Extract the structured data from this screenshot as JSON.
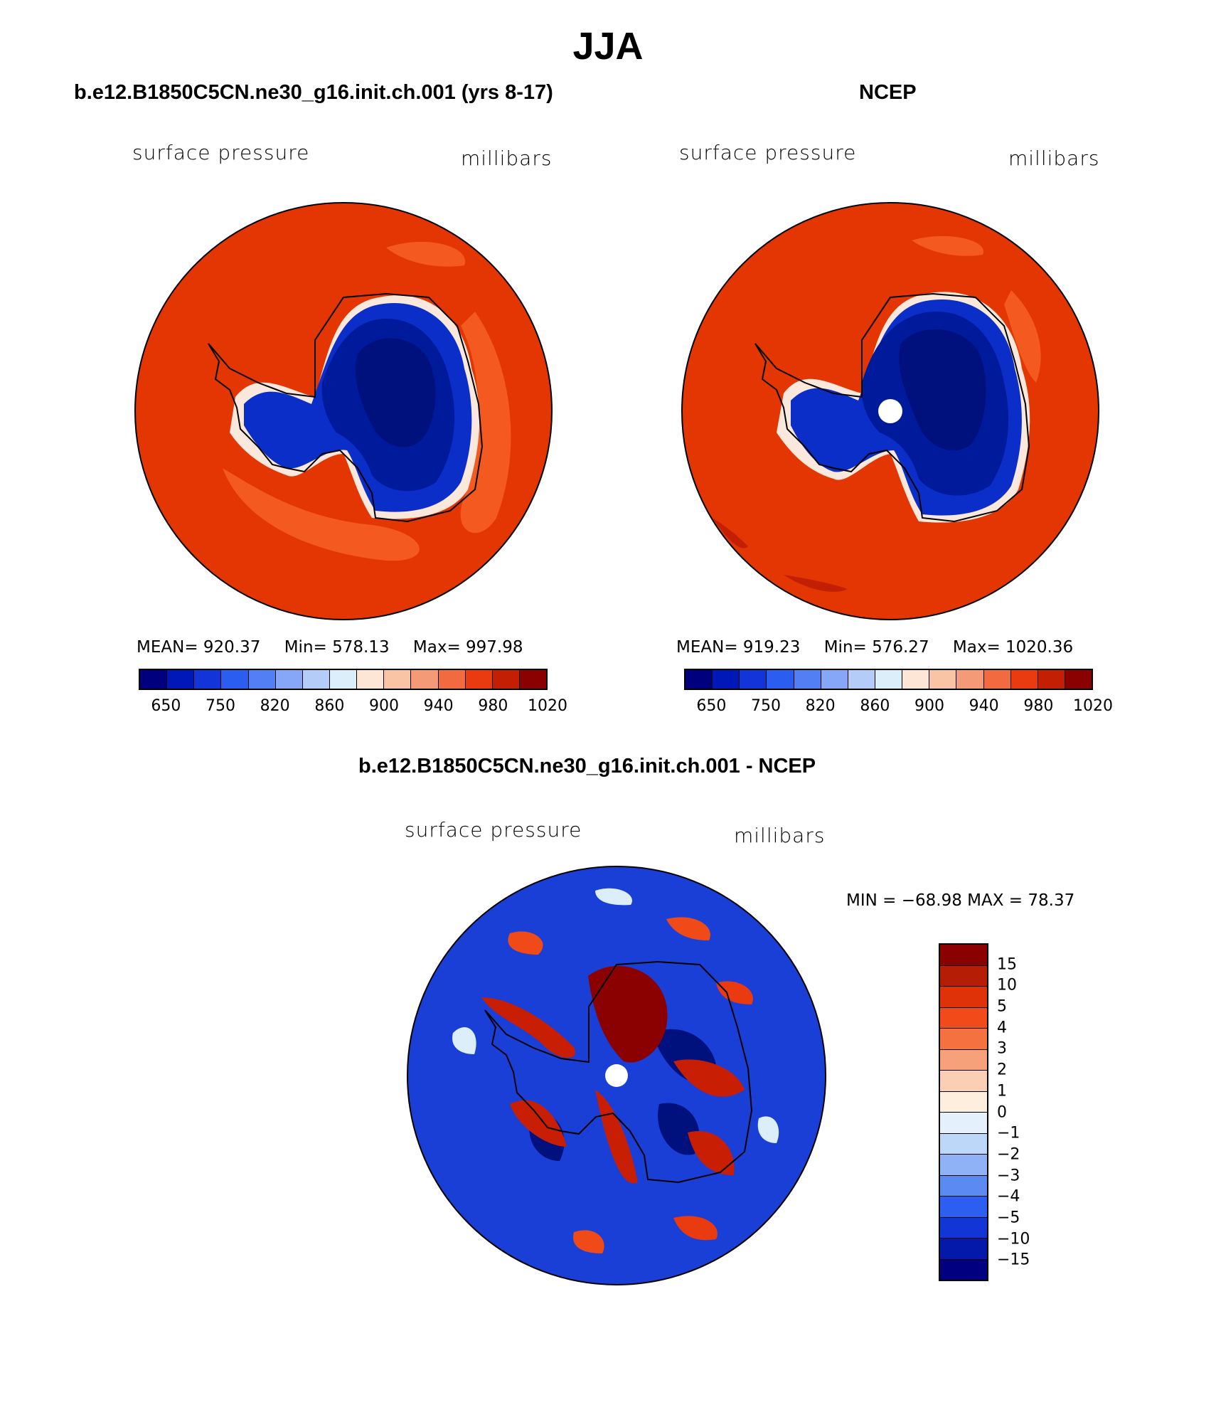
{
  "title": "JJA",
  "panels": {
    "model": {
      "heading": "b.e12.B1850C5CN.ne30_g16.init.ch.001 (yrs 8-17)",
      "variable": "surface pressure",
      "units": "millibars",
      "stats": {
        "mean": "MEAN= 920.37",
        "min": "Min= 578.13",
        "max": "Max= 997.98"
      }
    },
    "obs": {
      "heading": "NCEP",
      "variable": "surface pressure",
      "units": "millibars",
      "stats": {
        "mean": "MEAN= 919.23",
        "min": "Min= 576.27",
        "max": "Max= 1020.36"
      }
    },
    "diff": {
      "heading": "b.e12.B1850C5CN.ne30_g16.init.ch.001 - NCEP",
      "variable": "surface pressure",
      "units": "millibars",
      "minmax": "MIN = −68.98 MAX =   78.37"
    }
  },
  "abs_colorbar": {
    "colors": [
      "#00007f",
      "#0018b8",
      "#1234d8",
      "#2b5ef0",
      "#5280f4",
      "#86a6f6",
      "#b4cdf8",
      "#dceefa",
      "#fde6d6",
      "#f9c4a6",
      "#f59a76",
      "#f16a40",
      "#e93a10",
      "#c21f04",
      "#8b0000"
    ],
    "labels": [
      "650",
      "750",
      "820",
      "860",
      "900",
      "940",
      "980",
      "1020"
    ]
  },
  "diff_colorbar": {
    "colors": [
      "#8b0000",
      "#b51d05",
      "#df3208",
      "#f24a18",
      "#f57240",
      "#f7a07a",
      "#fbcfb4",
      "#fdeede",
      "#e4f1fc",
      "#bdd7f8",
      "#8eb2f5",
      "#5b8af2",
      "#2c5ff0",
      "#1236d6",
      "#0418aa",
      "#000080"
    ],
    "labels": [
      "15",
      "10",
      "5",
      "4",
      "3",
      "2",
      "1",
      "0",
      "−1",
      "−2",
      "−3",
      "−4",
      "−5",
      "−10",
      "−15"
    ]
  },
  "field_colors": {
    "ocean": "#e33602",
    "ocean_light": "#f45a20",
    "coast_pale": "#fbe8dc",
    "ice_1": "#0c2ec8",
    "ice_2": "#001a9c",
    "ice_3": "#00107c",
    "diff_blue": "#1a3fd6",
    "diff_red": "#c81e04"
  }
}
